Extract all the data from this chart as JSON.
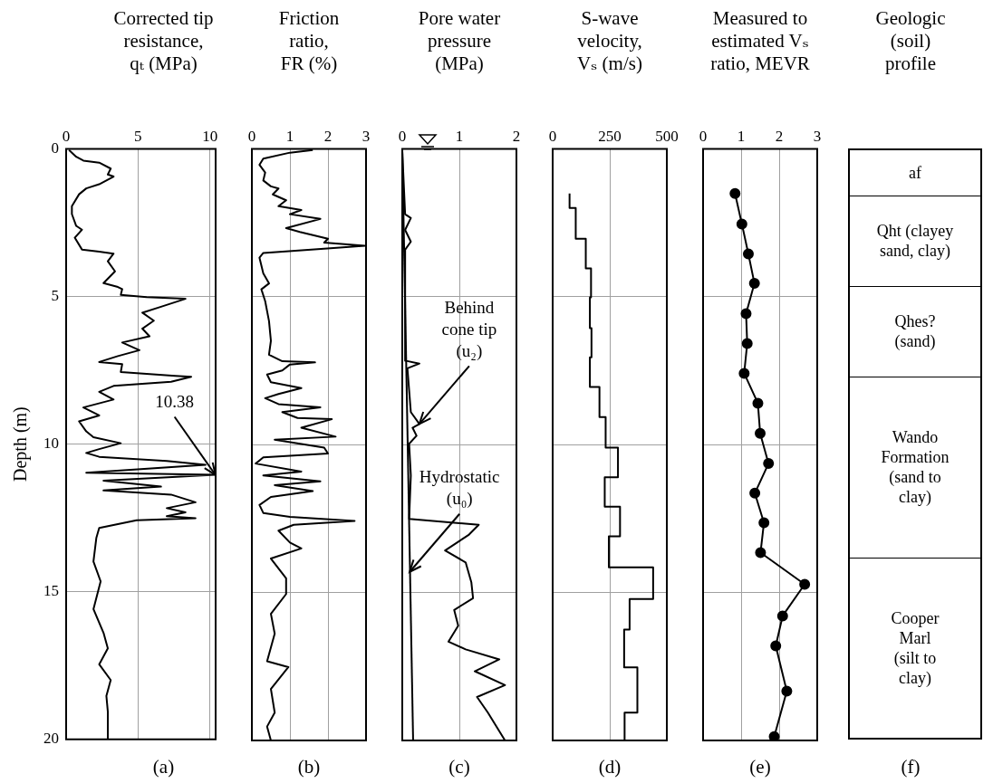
{
  "chart_data": [
    {
      "type": "line",
      "title": "Corrected tip\nresistance,\nqₜ (MPa)",
      "xlabel": "(a)",
      "ylabel": "Depth (m)",
      "xlim": [
        0,
        10.4
      ],
      "xticks": [
        0,
        5,
        10
      ],
      "ylim": [
        20,
        0
      ],
      "yticks": [
        0,
        5,
        10,
        15,
        20
      ],
      "grid": true,
      "annotations": [
        {
          "text": "10.38",
          "x": 10.38,
          "y": 11.04
        }
      ],
      "series": [
        {
          "color": "#000000",
          "x": [
            0.2,
            0.7,
            1.2,
            2.3,
            3.1,
            2.9,
            3.3,
            2.3,
            1.4,
            0.9,
            0.4,
            0.4,
            0.7,
            1.1,
            0.6,
            1.1,
            2.3,
            3.3,
            2.9,
            3.4,
            2.6,
            3.6,
            3.9,
            3.8,
            5.6,
            8.3,
            6.6,
            5.3,
            6.1,
            5.3,
            5.8,
            3.9,
            5.1,
            3.6,
            2.3,
            3.9,
            3.8,
            7.6,
            8.7,
            7.3,
            3.3,
            2.3,
            3.3,
            1.2,
            2.3,
            0.9,
            1.4,
            1.9,
            3.8,
            2.3,
            1.4,
            2.3,
            7.0,
            9.7,
            1.4,
            10.38,
            2.6,
            6.6,
            2.6,
            7.3,
            9.0,
            7.0,
            8.3,
            7.0,
            9.0,
            4.9,
            2.3,
            2.1,
            1.9,
            2.4,
            1.9,
            2.6,
            2.9,
            2.3,
            3.1,
            2.8,
            2.9,
            2.9
          ],
          "values": [
            0.04,
            0.27,
            0.4,
            0.47,
            0.67,
            0.87,
            0.94,
            1.2,
            1.34,
            1.54,
            1.94,
            2.21,
            2.61,
            2.74,
            3.01,
            3.41,
            3.48,
            3.55,
            3.81,
            4.15,
            4.55,
            4.68,
            4.75,
            4.95,
            5.02,
            5.08,
            5.35,
            5.55,
            5.82,
            6.09,
            6.35,
            6.56,
            6.82,
            7.02,
            7.22,
            7.29,
            7.56,
            7.69,
            7.72,
            7.89,
            8.03,
            8.23,
            8.49,
            8.76,
            9.03,
            9.23,
            9.57,
            9.77,
            9.97,
            10.17,
            10.3,
            10.43,
            10.57,
            10.7,
            10.97,
            11.04,
            11.24,
            11.44,
            11.57,
            11.71,
            11.97,
            12.17,
            12.31,
            12.44,
            12.51,
            12.58,
            12.84,
            13.18,
            13.98,
            14.65,
            15.59,
            16.39,
            16.92,
            17.46,
            17.99,
            18.53,
            19.06,
            20.0
          ]
        }
      ]
    },
    {
      "type": "line",
      "title": "Friction\nratio,\nFR (%)",
      "xlabel": "(b)",
      "xlim": [
        0,
        3
      ],
      "xticks": [
        0,
        1,
        2,
        3
      ],
      "ylim": [
        20,
        0
      ],
      "yticks": [
        0,
        5,
        10,
        15,
        20
      ],
      "grid": true,
      "tick_labels": "x",
      "series": [
        {
          "color": "#000000",
          "x": [
            1.6,
            1.0,
            0.3,
            0.2,
            0.35,
            0.3,
            0.5,
            0.7,
            0.55,
            0.9,
            0.7,
            1.3,
            1.0,
            1.8,
            0.9,
            1.26,
            2.0,
            1.9,
            2.97,
            1.9,
            0.3,
            0.2,
            0.3,
            0.45,
            0.25,
            0.35,
            0.45,
            0.5,
            0.45,
            0.8,
            1.66,
            1.0,
            0.8,
            0.4,
            0.5,
            1.3,
            0.7,
            0.35,
            0.7,
            1.8,
            0.8,
            1.2,
            2.1,
            1.3,
            2.2,
            0.6,
            1.9,
            2.0,
            0.3,
            0.1,
            1.3,
            0.3,
            1.8,
            0.6,
            1.6,
            0.5,
            0.2,
            0.3,
            1.0,
            2.7,
            1.1,
            0.7,
            1.0,
            1.3,
            0.5,
            0.9,
            0.9,
            0.5,
            0.6,
            0.4,
            0.96,
            0.5,
            0.6,
            0.4,
            0.5
          ],
          "values": [
            0.04,
            0.13,
            0.33,
            0.54,
            0.8,
            1.07,
            1.27,
            1.34,
            1.54,
            1.74,
            1.94,
            2.07,
            2.21,
            2.37,
            2.68,
            2.81,
            3.04,
            3.17,
            3.28,
            3.38,
            3.52,
            3.68,
            4.21,
            4.55,
            4.75,
            5.15,
            5.82,
            6.49,
            6.96,
            7.18,
            7.22,
            7.29,
            7.49,
            7.63,
            7.89,
            8.09,
            8.29,
            8.43,
            8.63,
            8.74,
            8.9,
            9.1,
            9.14,
            9.43,
            9.73,
            9.83,
            10.1,
            10.3,
            10.43,
            10.64,
            10.91,
            11.04,
            11.24,
            11.37,
            11.57,
            11.77,
            12.04,
            12.31,
            12.44,
            12.58,
            12.71,
            12.91,
            13.31,
            13.51,
            13.85,
            14.52,
            15.05,
            15.72,
            16.39,
            17.32,
            17.52,
            18.26,
            19.06,
            19.53,
            20.0
          ]
        }
      ]
    },
    {
      "type": "line",
      "title": "Pore water\npressure\n(MPa)",
      "xlabel": "(c)",
      "xlim": [
        0,
        2
      ],
      "xticks": [
        0,
        1,
        2
      ],
      "ylim": [
        20,
        0
      ],
      "yticks": [
        0,
        5,
        10,
        15,
        20
      ],
      "grid": true,
      "tick_labels": "x",
      "annotations": [
        {
          "text": "Behind\ncone tip\n(u₂)",
          "x": 0.3,
          "y": 9.3
        },
        {
          "text": "Hydrostatic\n(u₀)",
          "x": 0.13,
          "y": 14.3
        }
      ],
      "series": [
        {
          "color": "#000000",
          "x": [
            0.0,
            0.05,
            0.15,
            0.05,
            0.15,
            0.05,
            0.05,
            0.3,
            0.09,
            0.15,
            0.3,
            0.18,
            0.25,
            0.12,
            0.15,
            0.12,
            1.34,
            1.17,
            0.75,
            1.11,
            1.21,
            1.24,
            0.91,
            0.98,
            0.81,
            1.11,
            1.7,
            1.27,
            1.8,
            1.31,
            1.5,
            1.8
          ],
          "values": [
            0.07,
            2.21,
            2.34,
            2.74,
            3.14,
            3.41,
            7.16,
            7.26,
            7.42,
            8.9,
            9.3,
            9.43,
            9.7,
            9.97,
            11.04,
            12.51,
            12.71,
            13.04,
            13.58,
            13.98,
            14.65,
            15.19,
            15.59,
            16.12,
            16.66,
            16.92,
            17.26,
            17.66,
            18.13,
            18.53,
            19.06,
            20.0
          ]
        },
        {
          "color": "#000000",
          "x": [
            0,
            0.19
          ],
          "values": [
            0,
            20
          ]
        }
      ]
    },
    {
      "type": "step",
      "title": "S-wave\nvelocity,\nVₛ (m/s)",
      "xlabel": "(d)",
      "xlim": [
        0,
        500
      ],
      "xticks": [
        0,
        250,
        500
      ],
      "ylim": [
        20,
        0
      ],
      "yticks": [
        0,
        5,
        10,
        15,
        20
      ],
      "grid": true,
      "tick_labels": "x",
      "series": [
        {
          "color": "#000000",
          "x": [
            74,
            101,
            145,
            168,
            163,
            170,
            163,
            205,
            232,
            286,
            228,
            295,
            246,
            440,
            337,
            313,
            371,
            315,
            315
          ],
          "values": [
            1.51,
            2.0,
            3.04,
            4.04,
            5.02,
            6.06,
            7.05,
            8.05,
            9.07,
            10.1,
            11.1,
            12.1,
            13.1,
            14.15,
            15.22,
            16.25,
            17.53,
            19.06,
            20.0
          ]
        }
      ]
    },
    {
      "type": "line",
      "title": "Measured to\nestimated Vₛ\nratio, MEVR",
      "xlabel": "(e)",
      "xlim": [
        0,
        3
      ],
      "xticks": [
        0,
        1,
        2,
        3
      ],
      "ylim": [
        20,
        0
      ],
      "yticks": [
        0,
        5,
        10,
        15,
        20
      ],
      "grid": true,
      "tick_labels": "x",
      "marker": "circle",
      "series": [
        {
          "color": "#000000",
          "x": [
            0.84,
            1.02,
            1.19,
            1.35,
            1.13,
            1.16,
            1.08,
            1.44,
            1.5,
            1.72,
            1.36,
            1.6,
            1.51,
            2.67,
            2.09,
            1.91,
            2.2,
            1.87
          ],
          "values": [
            1.51,
            2.54,
            3.55,
            4.55,
            5.57,
            6.58,
            7.59,
            8.6,
            9.62,
            10.64,
            11.64,
            12.64,
            13.65,
            14.72,
            15.79,
            16.8,
            18.33,
            19.87
          ]
        }
      ]
    },
    {
      "type": "other",
      "title": "Geologic\n(soil)\nprofile",
      "xlabel": "(f)",
      "annotations": [
        "af",
        "Qht (clayey\nsand, clay)",
        "Qhes?\n(sand)",
        "Wando\nFormation\n(sand to\nclay)",
        "Cooper\nMarl\n(silt to\nclay)"
      ]
    }
  ]
}
